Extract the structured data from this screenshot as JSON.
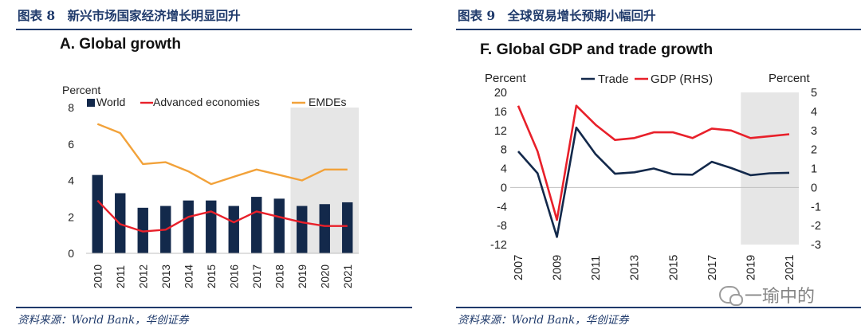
{
  "figures": [
    {
      "title": "图表 8　新兴市场国家经济增长明显回升",
      "source": "资料来源：World Bank，华创证券"
    },
    {
      "title": "图表 9　全球贸易增长预期小幅回升",
      "source": "资料来源：World Bank，华创证券"
    }
  ],
  "watermark": {
    "text": "一瑜中的"
  },
  "chart_data": [
    {
      "type": "bar",
      "title": "A. Global growth",
      "ylabel": "Percent",
      "ylim": [
        0,
        8
      ],
      "yticks": [
        0,
        2,
        4,
        6,
        8
      ],
      "categories": [
        "2010",
        "2011",
        "2012",
        "2013",
        "2014",
        "2015",
        "2016",
        "2017",
        "2018",
        "2019",
        "2020",
        "2021"
      ],
      "forecast_start": "2019",
      "legend": [
        "World",
        "Advanced economies",
        "EMDEs"
      ],
      "colors": {
        "bar": "#13294b",
        "advanced": "#e8202a",
        "emdes": "#f2a23a",
        "shade": "#e6e6e6"
      },
      "series": [
        {
          "name": "World",
          "kind": "bar",
          "values": [
            4.3,
            3.3,
            2.5,
            2.6,
            2.9,
            2.9,
            2.6,
            3.1,
            3.0,
            2.6,
            2.7,
            2.8
          ]
        },
        {
          "name": "Advanced economies",
          "kind": "line",
          "values": [
            2.9,
            1.6,
            1.2,
            1.3,
            2.0,
            2.3,
            1.7,
            2.3,
            2.0,
            1.7,
            1.5,
            1.5
          ]
        },
        {
          "name": "EMDEs",
          "kind": "line",
          "values": [
            7.1,
            6.6,
            4.9,
            5.0,
            4.5,
            3.8,
            4.2,
            4.6,
            4.3,
            4.0,
            4.6,
            4.6
          ]
        }
      ]
    },
    {
      "type": "line",
      "title": "F. Global GDP and trade growth",
      "ylabel_left": "Percent",
      "ylabel_right": "Percent",
      "ylim_left": [
        -12,
        20
      ],
      "ylim_right": [
        -3,
        5
      ],
      "yticks_left": [
        -12,
        -8,
        -4,
        0,
        4,
        8,
        12,
        16,
        20
      ],
      "yticks_right": [
        -3,
        -2,
        -1,
        0,
        1,
        2,
        3,
        4,
        5
      ],
      "x": [
        2007,
        2008,
        2009,
        2010,
        2011,
        2012,
        2013,
        2014,
        2015,
        2016,
        2017,
        2018,
        2019,
        2020,
        2021
      ],
      "xtick_labels": [
        "2007",
        "2009",
        "2011",
        "2013",
        "2015",
        "2017",
        "2019",
        "2021"
      ],
      "forecast_start": 2019,
      "legend": [
        "Trade",
        "GDP (RHS)"
      ],
      "colors": {
        "trade": "#13294b",
        "gdp": "#e8202a",
        "shade": "#e6e6e6"
      },
      "series": [
        {
          "name": "Trade",
          "axis": "left",
          "values": [
            7.6,
            3.0,
            -10.4,
            12.6,
            7.0,
            2.9,
            3.2,
            4.0,
            2.8,
            2.7,
            5.4,
            4.1,
            2.6,
            3.0,
            3.1
          ]
        },
        {
          "name": "GDP (RHS)",
          "axis": "right",
          "values": [
            4.3,
            1.9,
            -1.7,
            4.3,
            3.3,
            2.5,
            2.6,
            2.9,
            2.9,
            2.6,
            3.1,
            3.0,
            2.6,
            2.7,
            2.8
          ]
        }
      ]
    }
  ]
}
